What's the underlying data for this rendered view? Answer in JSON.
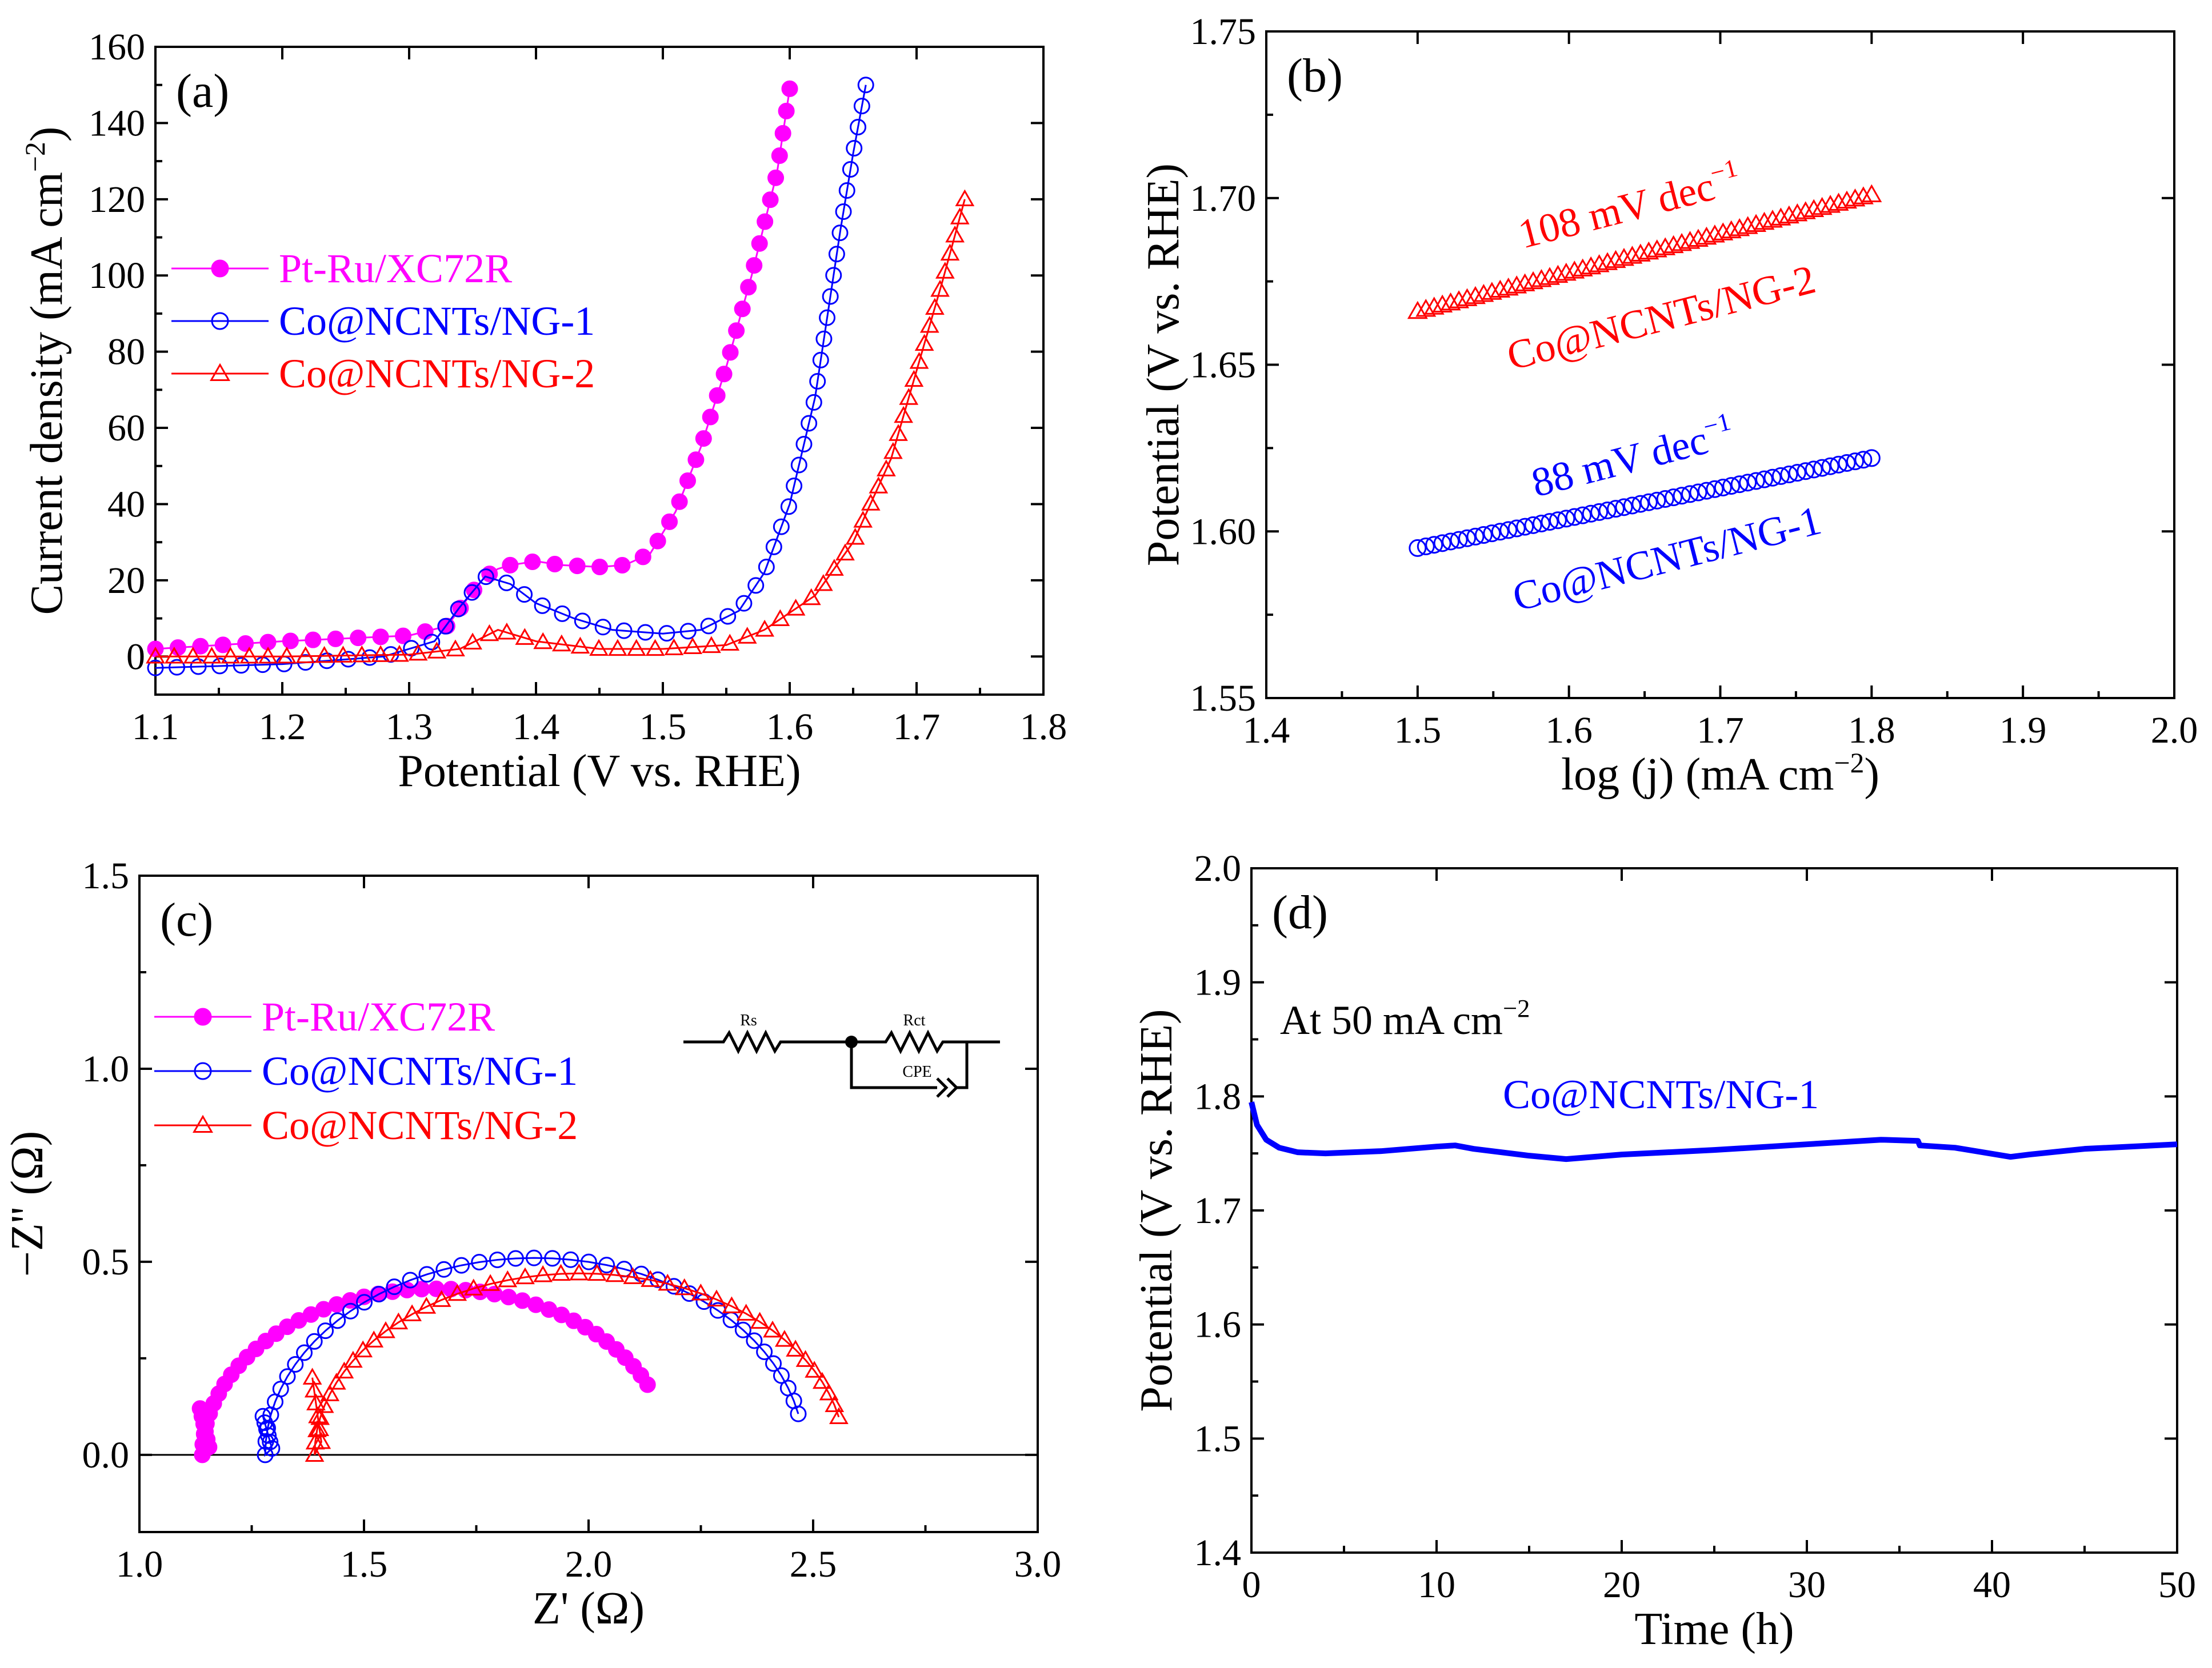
{
  "figure": {
    "colors": {
      "pt_ru": "#ff00ff",
      "co_ng1": "#0000ff",
      "co_ng2": "#ff0000",
      "axis": "#000000"
    }
  },
  "chart_data": [
    {
      "id": "a",
      "type": "line",
      "panel_label": "(a)",
      "xlabel": "Potential (V vs. RHE)",
      "ylabel": "Current density (mA cm",
      "ylabel_superscript": "−2",
      "ylabel_close": ")",
      "xlim": [
        1.1,
        1.8
      ],
      "ylim": [
        -10,
        160
      ],
      "xticks": [
        1.1,
        1.2,
        1.3,
        1.4,
        1.5,
        1.6,
        1.7,
        1.8
      ],
      "xtick_labels": [
        "1.1",
        "1.2",
        "1.3",
        "1.4",
        "1.5",
        "1.6",
        "1.7",
        "1.8"
      ],
      "yticks": [
        0,
        20,
        40,
        60,
        80,
        100,
        120,
        140,
        160
      ],
      "ytick_labels": [
        "0",
        "20",
        "40",
        "60",
        "80",
        "100",
        "120",
        "140",
        "160"
      ],
      "legend": [
        "Pt-Ru/XC72R",
        "Co@NCNTs/NG-1",
        "Co@NCNTs/NG-2"
      ],
      "series": [
        {
          "name": "Pt-Ru/XC72R",
          "color": "#ff00ff",
          "marker": "filled-circle",
          "x": [
            1.1,
            1.2,
            1.3,
            1.33,
            1.35,
            1.36,
            1.37,
            1.38,
            1.4,
            1.42,
            1.45,
            1.47,
            1.49,
            1.51,
            1.53,
            1.55,
            1.57,
            1.59,
            1.6
          ],
          "y": [
            2,
            4,
            5.5,
            8,
            17,
            21,
            23,
            24,
            25,
            24,
            23.5,
            24,
            27,
            38,
            55,
            76,
            100,
            127,
            149
          ]
        },
        {
          "name": "Co@NCNTs/NG-1",
          "color": "#0000ff",
          "marker": "open-circle",
          "x": [
            1.1,
            1.2,
            1.28,
            1.32,
            1.34,
            1.36,
            1.38,
            1.4,
            1.43,
            1.46,
            1.5,
            1.53,
            1.56,
            1.58,
            1.6,
            1.62,
            1.63,
            1.64,
            1.65,
            1.66
          ],
          "y": [
            -3,
            -2,
            0,
            4,
            13,
            21,
            19,
            14,
            10,
            7,
            6,
            7,
            12,
            22,
            40,
            68,
            90,
            112,
            132,
            150
          ]
        },
        {
          "name": "Co@NCNTs/NG-2",
          "color": "#ff0000",
          "marker": "open-triangle",
          "x": [
            1.1,
            1.2,
            1.3,
            1.34,
            1.37,
            1.4,
            1.45,
            1.5,
            1.55,
            1.58,
            1.62,
            1.65,
            1.68,
            1.7,
            1.72,
            1.738
          ],
          "y": [
            0,
            0,
            0.5,
            2,
            7,
            4,
            2,
            2,
            3,
            7,
            16,
            30,
            52,
            75,
            98,
            120
          ]
        }
      ]
    },
    {
      "id": "b",
      "type": "scatter",
      "panel_label": "(b)",
      "xlabel": "log (j) (mA cm",
      "xlabel_superscript": "−2",
      "xlabel_close": ")",
      "ylabel": "Potential (V vs. RHE)",
      "xlim": [
        1.4,
        2.0
      ],
      "ylim": [
        1.55,
        1.75
      ],
      "xticks": [
        1.4,
        1.5,
        1.6,
        1.7,
        1.8,
        1.9,
        2.0
      ],
      "xtick_labels": [
        "1.4",
        "1.5",
        "1.6",
        "1.7",
        "1.8",
        "1.9",
        "2.0"
      ],
      "yticks": [
        1.55,
        1.6,
        1.65,
        1.7,
        1.75
      ],
      "ytick_labels": [
        "1.55",
        "1.60",
        "1.65",
        "1.70",
        "1.75"
      ],
      "annotations": [
        {
          "text": "108 mV dec",
          "sup": "−1",
          "color": "#ff0000"
        },
        {
          "text": "Co@NCNTs/NG-2",
          "color": "#ff0000"
        },
        {
          "text": "88 mV dec",
          "sup": "−1",
          "color": "#0000ff"
        },
        {
          "text": "Co@NCNTs/NG-1",
          "color": "#0000ff"
        }
      ],
      "series": [
        {
          "name": "Co@NCNTs/NG-2",
          "color": "#ff0000",
          "marker": "open-triangle",
          "x_range": [
            1.5,
            1.8
          ],
          "y_range": [
            1.666,
            1.701
          ],
          "n": 56
        },
        {
          "name": "Co@NCNTs/NG-1",
          "color": "#0000ff",
          "marker": "open-circle",
          "x_range": [
            1.5,
            1.8
          ],
          "y_range": [
            1.595,
            1.622
          ],
          "n": 56
        }
      ]
    },
    {
      "id": "c",
      "type": "scatter",
      "panel_label": "(c)",
      "xlabel": "Z' (Ω)",
      "ylabel": "−Z'' (Ω)",
      "xlim": [
        1.0,
        3.0
      ],
      "ylim": [
        -0.2,
        1.5
      ],
      "xticks": [
        1.0,
        1.5,
        2.0,
        2.5,
        3.0
      ],
      "xtick_labels": [
        "1.0",
        "1.5",
        "2.0",
        "2.5",
        "3.0"
      ],
      "yticks": [
        0.0,
        0.5,
        1.0,
        1.5
      ],
      "ytick_labels": [
        "0.0",
        "0.5",
        "1.0",
        "1.5"
      ],
      "legend": [
        "Pt-Ru/XC72R",
        "Co@NCNTs/NG-1",
        "Co@NCNTs/NG-2"
      ],
      "circuit": {
        "rs": "Rs",
        "rct": "Rct",
        "cpe": "CPE"
      },
      "series": [
        {
          "name": "Pt-Ru/XC72R",
          "color": "#ff00ff",
          "marker": "filled-circle",
          "rs": 1.14,
          "diameter": 1.04,
          "peak": 0.43,
          "end_angle_deg": 155,
          "spike_top": 0.12
        },
        {
          "name": "Co@NCNTs/NG-1",
          "color": "#0000ff",
          "marker": "open-circle",
          "rs": 1.28,
          "diameter": 1.2,
          "peak": 0.51,
          "end_angle_deg": 168,
          "spike_top": 0.1
        },
        {
          "name": "Co@NCNTs/NG-2",
          "color": "#ff0000",
          "marker": "open-triangle",
          "rs": 1.39,
          "diameter": 1.18,
          "peak": 0.47,
          "end_angle_deg": 168,
          "spike_top": 0.2
        }
      ]
    },
    {
      "id": "d",
      "type": "line",
      "panel_label": "(d)",
      "xlabel": "Time (h)",
      "ylabel": "Potential (V vs. RHE)",
      "xlim": [
        0,
        50
      ],
      "ylim": [
        1.4,
        2.0
      ],
      "xticks": [
        0,
        10,
        20,
        30,
        40,
        50
      ],
      "xtick_labels": [
        "0",
        "10",
        "20",
        "30",
        "40",
        "50"
      ],
      "yticks": [
        1.4,
        1.5,
        1.6,
        1.7,
        1.8,
        1.9,
        2.0
      ],
      "ytick_labels": [
        "1.4",
        "1.5",
        "1.6",
        "1.7",
        "1.8",
        "1.9",
        "2.0"
      ],
      "annotations": [
        {
          "text": "At 50 mA cm",
          "sup": "−2",
          "color": "#000000"
        },
        {
          "text": "Co@NCNTs/NG-1",
          "color": "#0000ff"
        }
      ],
      "series": [
        {
          "name": "Co@NCNTs/NG-1",
          "color": "#0000ff",
          "x": [
            0,
            0.3,
            0.8,
            1.5,
            2.5,
            4,
            7,
            10,
            11,
            12,
            15,
            17,
            20,
            25,
            30,
            34,
            36,
            36.1,
            38,
            41,
            42,
            45,
            50
          ],
          "y": [
            1.795,
            1.775,
            1.762,
            1.755,
            1.751,
            1.75,
            1.752,
            1.756,
            1.757,
            1.754,
            1.748,
            1.745,
            1.749,
            1.753,
            1.758,
            1.762,
            1.761,
            1.757,
            1.755,
            1.747,
            1.749,
            1.754,
            1.758
          ]
        }
      ]
    }
  ]
}
